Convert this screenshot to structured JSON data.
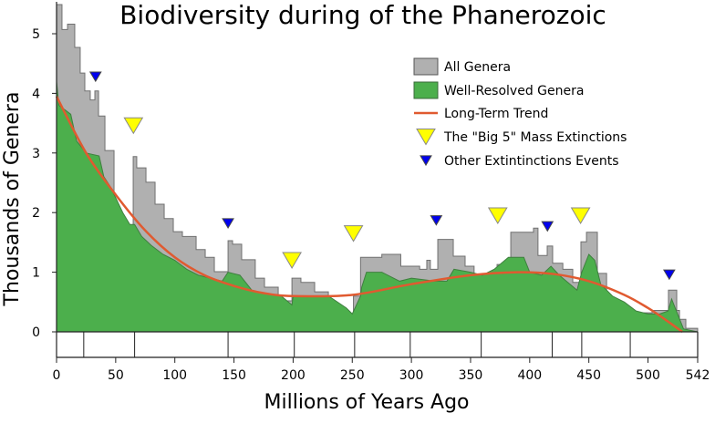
{
  "chart_data": {
    "type": "area",
    "title": "Biodiversity during of the Phanerozoic",
    "xlabel": "Millions of Years Ago",
    "ylabel": "Thousands of Genera",
    "xlim": [
      0,
      542
    ],
    "ylim": [
      0,
      5
    ],
    "x_ticks": [
      0,
      50,
      100,
      150,
      200,
      250,
      300,
      350,
      400,
      450,
      500,
      542
    ],
    "y_ticks": [
      0,
      1,
      2,
      3,
      4,
      5
    ],
    "grid": false,
    "legend_position": "top-right",
    "period_boundaries": [
      0,
      23,
      66,
      145,
      201,
      252,
      299,
      359,
      419,
      444,
      485,
      542
    ],
    "colors": {
      "all": "#b0b0b0",
      "all_edge": "#707070",
      "well": "#4caf4c",
      "well_edge": "#3f7f3f",
      "trend": "#e05a30",
      "big5": "#ffff00",
      "other": "#0000ee"
    },
    "series": [
      {
        "name": "All Genera",
        "style": "step",
        "points": [
          [
            0,
            5.49
          ],
          [
            4.6,
            5.07
          ],
          [
            9.3,
            5.16
          ],
          [
            15.4,
            4.77
          ],
          [
            20,
            4.34
          ],
          [
            23.9,
            4.04
          ],
          [
            28.5,
            3.89
          ],
          [
            32.4,
            4.04
          ],
          [
            35.5,
            3.62
          ],
          [
            40.9,
            3.04
          ],
          [
            48.6,
            1.9
          ],
          [
            56.3,
            1.4
          ],
          [
            64.8,
            2.94
          ],
          [
            67.8,
            2.75
          ],
          [
            75.6,
            2.51
          ],
          [
            83.3,
            2.14
          ],
          [
            91,
            1.9
          ],
          [
            98.7,
            1.68
          ],
          [
            106.4,
            1.6
          ],
          [
            118,
            1.38
          ],
          [
            125.7,
            1.25
          ],
          [
            133.4,
            1.01
          ],
          [
            145,
            1.53
          ],
          [
            148.8,
            1.47
          ],
          [
            156.5,
            1.21
          ],
          [
            168,
            0.9
          ],
          [
            175.8,
            0.75
          ],
          [
            187.4,
            0.52
          ],
          [
            199,
            0.9
          ],
          [
            206.6,
            0.83
          ],
          [
            218.2,
            0.67
          ],
          [
            229.8,
            0.4
          ],
          [
            241.3,
            0.21
          ],
          [
            249,
            0.14
          ],
          [
            251,
            0.6
          ],
          [
            257,
            1.25
          ],
          [
            275,
            1.3
          ],
          [
            291,
            1.1
          ],
          [
            307,
            1.05
          ],
          [
            313,
            1.2
          ],
          [
            316,
            1.05
          ],
          [
            322.3,
            1.55
          ],
          [
            335.4,
            1.27
          ],
          [
            345.4,
            1.1
          ],
          [
            353,
            0.9
          ],
          [
            358.5,
            0.8
          ],
          [
            368.5,
            0.87
          ],
          [
            372.4,
            1.13
          ],
          [
            384,
            1.67
          ],
          [
            403.2,
            1.74
          ],
          [
            407,
            1.28
          ],
          [
            414.8,
            1.44
          ],
          [
            419.4,
            1.15
          ],
          [
            428,
            1.05
          ],
          [
            436.4,
            0.83
          ],
          [
            443.3,
            1.51
          ],
          [
            448,
            1.67
          ],
          [
            457.2,
            0.98
          ],
          [
            465,
            0.52
          ],
          [
            476.5,
            0.29
          ],
          [
            492,
            0.32
          ],
          [
            503.5,
            0.36
          ],
          [
            517.3,
            0.7
          ],
          [
            524.3,
            0.36
          ],
          [
            526.6,
            0.21
          ],
          [
            532,
            0.06
          ],
          [
            542,
            0
          ]
        ]
      },
      {
        "name": "Well-Resolved Genera",
        "style": "linear",
        "points": [
          [
            0,
            4.2
          ],
          [
            2,
            3.8
          ],
          [
            12,
            3.65
          ],
          [
            17,
            3.2
          ],
          [
            25,
            3.0
          ],
          [
            36,
            2.95
          ],
          [
            40,
            2.6
          ],
          [
            45,
            2.45
          ],
          [
            50,
            2.25
          ],
          [
            56,
            2.0
          ],
          [
            62,
            1.8
          ],
          [
            66,
            1.8
          ],
          [
            72,
            1.6
          ],
          [
            80,
            1.45
          ],
          [
            90,
            1.3
          ],
          [
            100,
            1.2
          ],
          [
            110,
            1.05
          ],
          [
            120,
            0.95
          ],
          [
            140,
            0.85
          ],
          [
            145,
            1.0
          ],
          [
            155,
            0.95
          ],
          [
            165,
            0.7
          ],
          [
            175,
            0.65
          ],
          [
            190,
            0.6
          ],
          [
            199,
            0.45
          ],
          [
            200,
            0.6
          ],
          [
            230,
            0.6
          ],
          [
            245,
            0.4
          ],
          [
            250,
            0.3
          ],
          [
            257,
            0.6
          ],
          [
            258,
            0.75
          ],
          [
            262,
            1.0
          ],
          [
            275,
            1.0
          ],
          [
            290,
            0.85
          ],
          [
            300,
            0.9
          ],
          [
            320,
            0.85
          ],
          [
            330,
            0.85
          ],
          [
            336,
            1.05
          ],
          [
            350,
            1.0
          ],
          [
            360,
            0.95
          ],
          [
            370,
            1.05
          ],
          [
            382,
            1.25
          ],
          [
            395,
            1.25
          ],
          [
            400,
            1.0
          ],
          [
            410,
            0.95
          ],
          [
            418,
            1.1
          ],
          [
            425,
            0.95
          ],
          [
            440,
            0.7
          ],
          [
            444,
            1.0
          ],
          [
            450,
            1.3
          ],
          [
            455,
            1.2
          ],
          [
            460,
            0.8
          ],
          [
            470,
            0.6
          ],
          [
            480,
            0.5
          ],
          [
            490,
            0.35
          ],
          [
            500,
            0.3
          ],
          [
            510,
            0.3
          ],
          [
            517,
            0.35
          ],
          [
            520,
            0.55
          ],
          [
            523,
            0.4
          ],
          [
            530,
            0.05
          ],
          [
            542,
            0
          ]
        ]
      },
      {
        "name": "Long-Term Trend",
        "style": "smooth",
        "points": [
          [
            0,
            3.95
          ],
          [
            25,
            3.0
          ],
          [
            50,
            2.3
          ],
          [
            75,
            1.7
          ],
          [
            100,
            1.25
          ],
          [
            125,
            0.95
          ],
          [
            150,
            0.77
          ],
          [
            175,
            0.65
          ],
          [
            200,
            0.6
          ],
          [
            250,
            0.62
          ],
          [
            300,
            0.8
          ],
          [
            350,
            0.95
          ],
          [
            390,
            1.0
          ],
          [
            420,
            0.97
          ],
          [
            450,
            0.85
          ],
          [
            480,
            0.62
          ],
          [
            500,
            0.4
          ],
          [
            515,
            0.2
          ],
          [
            529,
            0
          ]
        ]
      }
    ],
    "markers": [
      {
        "name": "The \"Big 5\" Mass Extinctions",
        "kind": "big5",
        "points": [
          [
            65,
            3.46
          ],
          [
            199,
            1.2
          ],
          [
            251,
            1.65
          ],
          [
            373,
            1.95
          ],
          [
            443,
            1.95
          ]
        ]
      },
      {
        "name": "Other Extintinctions Events",
        "kind": "other",
        "points": [
          [
            33,
            4.28
          ],
          [
            145,
            1.82
          ],
          [
            321,
            1.87
          ],
          [
            415,
            1.77
          ],
          [
            518,
            0.96
          ]
        ]
      }
    ],
    "legend": [
      "All Genera",
      "Well-Resolved Genera",
      "Long-Term Trend",
      "The \"Big 5\" Mass Extinctions",
      "Other Extintinctions Events"
    ]
  }
}
